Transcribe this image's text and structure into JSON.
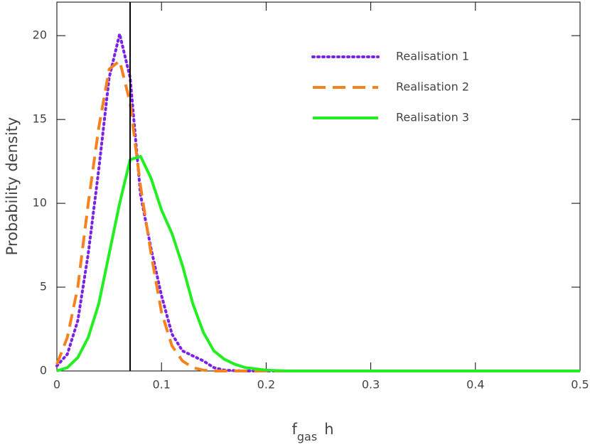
{
  "chart_data": {
    "type": "line",
    "xlabel": {
      "base": "f",
      "sub": "gas",
      "suffix": "h"
    },
    "ylabel": "Probability density",
    "x": [
      0,
      0.01,
      0.02,
      0.03,
      0.04,
      0.05,
      0.06,
      0.07,
      0.08,
      0.09,
      0.1,
      0.11,
      0.12,
      0.13,
      0.14,
      0.15,
      0.16,
      0.17,
      0.18,
      0.2,
      0.22,
      0.5
    ],
    "series": [
      {
        "name": "Realisation 1",
        "color": "#7b22e8",
        "dash": "dotted",
        "values": [
          0.3,
          1.0,
          3,
          7,
          12,
          17.5,
          20.1,
          17.5,
          10.5,
          7.3,
          4.5,
          2.2,
          1.2,
          0.9,
          0.6,
          0.2,
          0.05,
          0.02,
          0,
          0,
          0,
          0
        ]
      },
      {
        "name": "Realisation 2",
        "color": "#f5821f",
        "dash": "dashed",
        "values": [
          0.4,
          2,
          5,
          10,
          14.5,
          18,
          18.5,
          16,
          11,
          7,
          3.5,
          1.5,
          0.6,
          0.2,
          0.05,
          0,
          0,
          0,
          0,
          0,
          0,
          0
        ]
      },
      {
        "name": "Realisation 3",
        "color": "#22ee22",
        "dash": "solid",
        "values": [
          0,
          0.2,
          0.8,
          2,
          4,
          7,
          10,
          12.6,
          12.8,
          11.5,
          9.6,
          8.2,
          6.3,
          4,
          2.3,
          1.2,
          0.7,
          0.4,
          0.2,
          0.05,
          0,
          0
        ]
      }
    ],
    "vline": 0.07,
    "xlim": [
      0,
      0.5
    ],
    "xticks": [
      0,
      0.1,
      0.2,
      0.3,
      0.4,
      0.5
    ],
    "ylim": [
      0,
      22
    ],
    "yticks": [
      0,
      5,
      10,
      15,
      20
    ],
    "legend": "upper right"
  }
}
